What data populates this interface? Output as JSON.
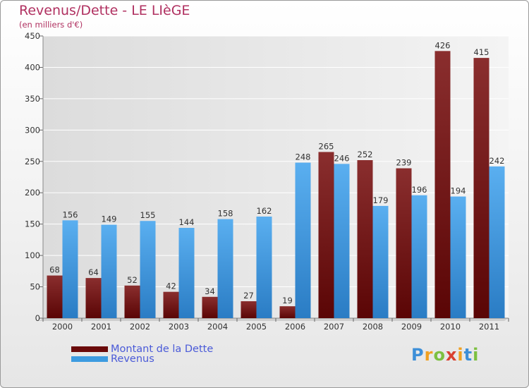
{
  "title": "Revenus/Dette - LE LIèGE",
  "subtitle": "(en milliers d'€)",
  "logo_text": "Proxiti",
  "chart_data": {
    "type": "bar",
    "categories": [
      "2000",
      "2001",
      "2002",
      "2003",
      "2004",
      "2005",
      "2006",
      "2007",
      "2008",
      "2009",
      "2010",
      "2011"
    ],
    "series": [
      {
        "name": "Montant de la Dette",
        "color": "#7a1a1a",
        "values": [
          68,
          64,
          52,
          42,
          34,
          27,
          19,
          265,
          252,
          239,
          426,
          415
        ]
      },
      {
        "name": "Revenus",
        "color": "#3d9be0",
        "values": [
          156,
          149,
          155,
          144,
          158,
          162,
          248,
          246,
          179,
          196,
          194,
          242
        ]
      }
    ],
    "ylim": [
      0,
      450
    ],
    "yticks": [
      0,
      50,
      100,
      150,
      200,
      250,
      300,
      350,
      400,
      450
    ],
    "grid": true,
    "legend_position": "bottom-left"
  }
}
